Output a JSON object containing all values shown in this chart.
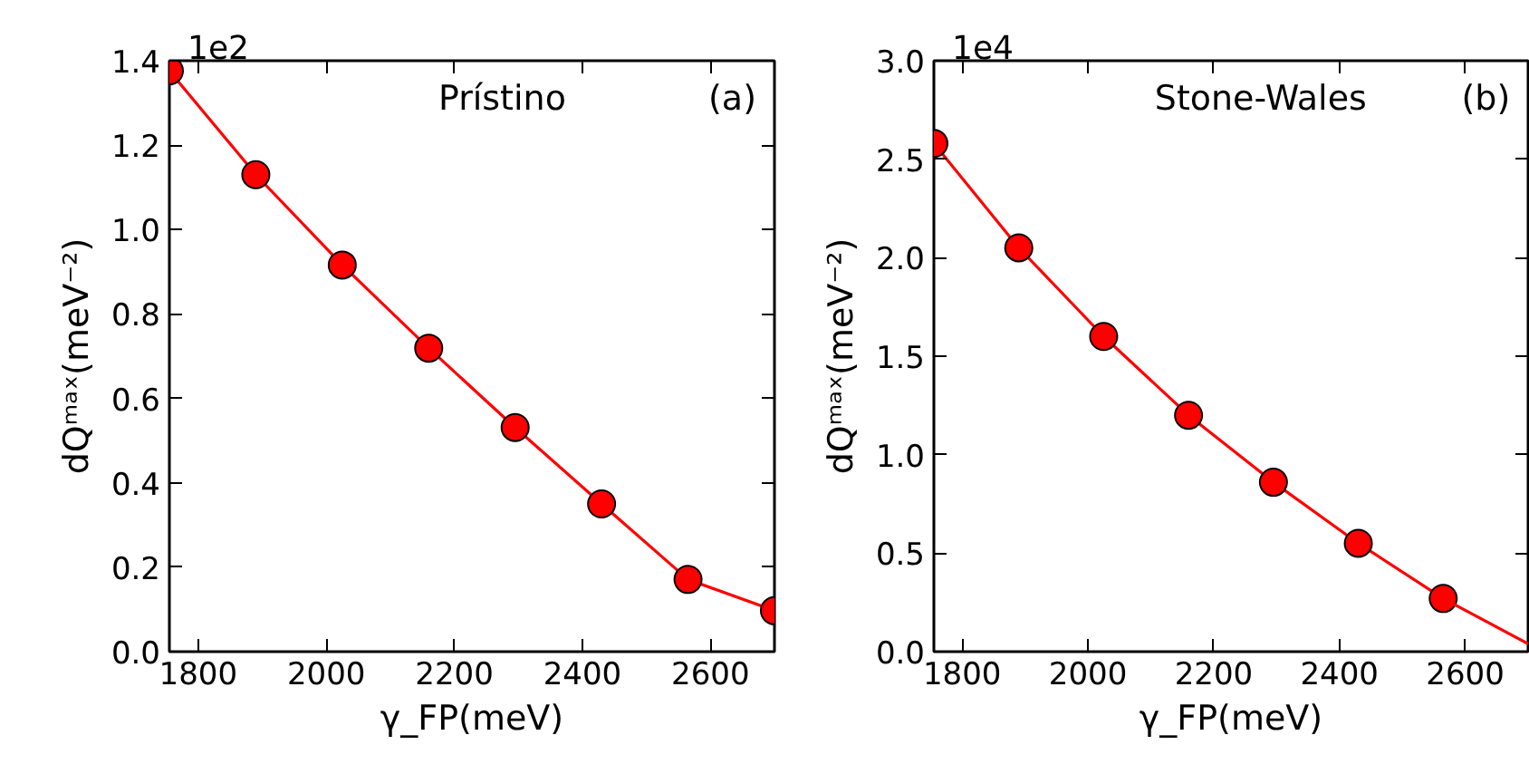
{
  "chart_data": [
    {
      "type": "line",
      "xlabel": "γ_FP(meV)",
      "ylabel": "dQᵐᵃˣ(meV⁻²)",
      "annotations": [
        "1e2",
        "Prístino",
        "(a)"
      ],
      "xlim": [
        1755,
        2700
      ],
      "ylim": [
        0,
        1.4
      ],
      "xticks": [
        1800,
        2000,
        2200,
        2400,
        2600
      ],
      "yticks": [
        {
          "value": 0,
          "label": "0.0"
        },
        0.2,
        0.4,
        0.6,
        0.8,
        {
          "value": 1,
          "label": "1.0"
        },
        1.2,
        1.4
      ],
      "grid": false,
      "marker": "circle",
      "line_style": "solid",
      "series": [
        {
          "color": "#ff0000",
          "x": [
            1755,
            1890,
            2025,
            2160,
            2295,
            2430,
            2565,
            2700
          ],
          "values": [
            1.376,
            1.13,
            0.916,
            0.719,
            0.531,
            0.35,
            0.171,
            0.097
          ]
        }
      ]
    },
    {
      "type": "line",
      "xlabel": "γ_FP(meV)",
      "ylabel": "dQᵐᵃˣ(meV⁻²)",
      "annotations": [
        "1e4",
        "Stone-Wales",
        "(b)"
      ],
      "xlim": [
        1755,
        2700
      ],
      "ylim": [
        0,
        3.0
      ],
      "xticks": [
        1800,
        2000,
        2200,
        2400,
        2600
      ],
      "yticks": [
        {
          "value": 0,
          "label": "0.0"
        },
        0.5,
        {
          "value": 1,
          "label": "1.0"
        },
        1.5,
        {
          "value": 2,
          "label": "2.0"
        },
        2.5,
        {
          "value": 3,
          "label": "3.0"
        }
      ],
      "grid": false,
      "marker": "circle",
      "line_style": "solid",
      "series": [
        {
          "color": "#ff0000",
          "x": [
            1755,
            1890,
            2025,
            2160,
            2295,
            2430,
            2565
          ],
          "values": [
            2.58,
            2.05,
            1.6,
            1.2,
            0.86,
            0.55,
            0.27
          ]
        },
        {
          "type": "line",
          "marker": "none",
          "color": "#ff0000",
          "x": [
            2565,
            2700
          ],
          "values": [
            0.27,
            0.04
          ]
        }
      ]
    }
  ]
}
